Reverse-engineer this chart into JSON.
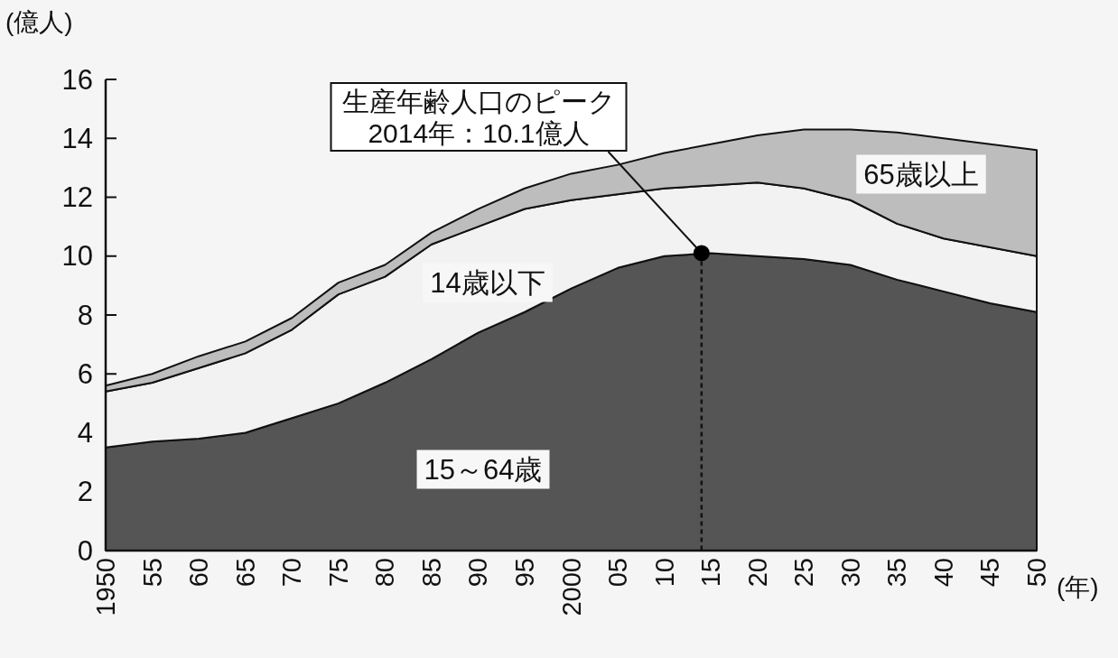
{
  "chart_data": {
    "type": "area",
    "stacked": true,
    "xlabel": "(年)",
    "ylabel": "(億人)",
    "x": [
      1950,
      1955,
      1960,
      1965,
      1970,
      1975,
      1980,
      1985,
      1990,
      1995,
      2000,
      2005,
      2010,
      2015,
      2020,
      2025,
      2030,
      2035,
      2040,
      2045,
      2050
    ],
    "xlim": [
      1950,
      2050
    ],
    "xticks": [
      1950,
      {
        "value": 1955,
        "label": "55"
      },
      {
        "value": 1960,
        "label": "60"
      },
      {
        "value": 1965,
        "label": "65"
      },
      {
        "value": 1970,
        "label": "70"
      },
      {
        "value": 1975,
        "label": "75"
      },
      {
        "value": 1980,
        "label": "80"
      },
      {
        "value": 1985,
        "label": "85"
      },
      {
        "value": 1990,
        "label": "90"
      },
      {
        "value": 1995,
        "label": "95"
      },
      2000,
      {
        "value": 2005,
        "label": "05"
      },
      {
        "value": 2010,
        "label": "10"
      },
      {
        "value": 2015,
        "label": "15"
      },
      {
        "value": 2020,
        "label": "20"
      },
      {
        "value": 2025,
        "label": "25"
      },
      {
        "value": 2030,
        "label": "30"
      },
      {
        "value": 2035,
        "label": "35"
      },
      {
        "value": 2040,
        "label": "40"
      },
      {
        "value": 2045,
        "label": "45"
      },
      {
        "value": 2050,
        "label": "50"
      }
    ],
    "ylim": [
      0,
      16
    ],
    "yticks": [
      0,
      2,
      4,
      6,
      8,
      10,
      12,
      14,
      16
    ],
    "series": [
      {
        "name": "15～64歳",
        "color": "#555555",
        "values": [
          3.5,
          3.7,
          3.8,
          4.0,
          4.5,
          5.0,
          5.7,
          6.5,
          7.4,
          8.1,
          8.9,
          9.6,
          10.0,
          10.1,
          10.0,
          9.9,
          9.7,
          9.2,
          8.8,
          8.4,
          8.1
        ]
      },
      {
        "name": "14歳以下",
        "color": "#f2f2f2",
        "values": [
          1.9,
          2.0,
          2.4,
          2.7,
          3.0,
          3.7,
          3.6,
          3.9,
          3.6,
          3.5,
          3.0,
          2.5,
          2.3,
          2.3,
          2.5,
          2.4,
          2.2,
          1.9,
          1.8,
          1.9,
          1.9
        ]
      },
      {
        "name": "65歳以上",
        "color": "#bdbdbd",
        "values": [
          0.2,
          0.3,
          0.4,
          0.4,
          0.4,
          0.4,
          0.4,
          0.4,
          0.6,
          0.7,
          0.9,
          1.0,
          1.2,
          1.4,
          1.6,
          2.0,
          2.4,
          3.1,
          3.4,
          3.5,
          3.6
        ]
      }
    ],
    "ref_lines": [
      {
        "axis": "x",
        "value": 2014,
        "line_style": "dashed",
        "color": "#111111"
      }
    ],
    "annotations": [
      {
        "text": "生産年齢人口のピーク\n2014年：10.1億人",
        "x": 2014,
        "y": 10.1
      }
    ]
  }
}
